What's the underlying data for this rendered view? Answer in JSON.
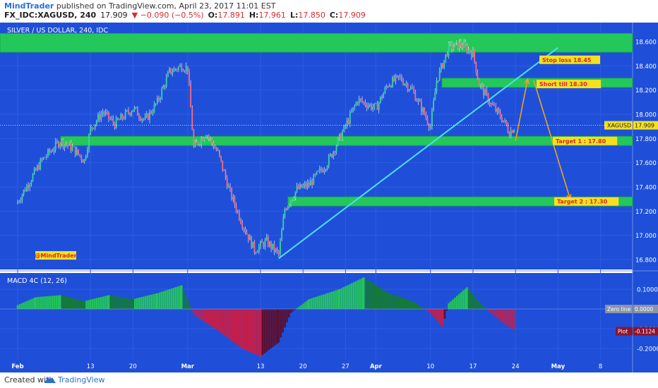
{
  "header": {
    "author": "MindTrader",
    "published": " published on TradingView.com, April 23, 2017 11:01 EST",
    "symbol": "FX_IDC:XAGUSD, 240",
    "last": "17.909",
    "change": "▼ −0.090 (−0.5%)",
    "o_label": "O:",
    "o_value": "17.891",
    "h_label": "H:",
    "h_value": "17.961",
    "l_label": "L:",
    "l_value": "17.850",
    "c_label": "C:",
    "c_value": "17.909"
  },
  "footer": {
    "created": "Created with",
    "brand": "TradingView"
  },
  "colors": {
    "background": "#1f4fd8",
    "zone": "#24c85a",
    "candle_up": "#38d6a0",
    "candle_down": "#ff6a7a",
    "trendline": "#4fe0f0",
    "arrow": "#f2a020",
    "label_bg": "#f5e020",
    "label_text": "#d22a2a",
    "macd_pos": "#1db34f",
    "macd_neg": "#a01a45"
  },
  "chart_data": [
    {
      "type": "candlestick",
      "title": "SILVER / US DOLLAR, 240, IDC",
      "ylim": [
        16.7,
        18.7
      ],
      "y_ticks": [
        "18.600",
        "18.400",
        "18.200",
        "18.000",
        "17.800",
        "17.600",
        "17.400",
        "17.200",
        "17.000",
        "16.800"
      ],
      "x_ticks": [
        "Feb",
        "13",
        "20",
        "Mar",
        "13",
        "20",
        "27",
        "Apr",
        "10",
        "17",
        "24",
        "May",
        "8"
      ],
      "last_price": {
        "label": "XAGUSD",
        "value": "17.909",
        "y": 17.909
      },
      "price_path": [
        {
          "x": "Feb 1",
          "y": 17.28
        },
        {
          "x": "Feb 3",
          "y": 17.45
        },
        {
          "x": "Feb 5",
          "y": 17.62
        },
        {
          "x": "Feb 8",
          "y": 17.78
        },
        {
          "x": "Feb 10",
          "y": 17.72
        },
        {
          "x": "Feb 12",
          "y": 17.62
        },
        {
          "x": "Feb 13",
          "y": 17.88
        },
        {
          "x": "Feb 15",
          "y": 18.02
        },
        {
          "x": "Feb 17",
          "y": 17.92
        },
        {
          "x": "Feb 20",
          "y": 18.05
        },
        {
          "x": "Feb 22",
          "y": 17.95
        },
        {
          "x": "Feb 24",
          "y": 18.1
        },
        {
          "x": "Feb 26",
          "y": 18.35
        },
        {
          "x": "Feb 28",
          "y": 18.4
        },
        {
          "x": "Mar 1",
          "y": 18.38
        },
        {
          "x": "Mar 2",
          "y": 17.72
        },
        {
          "x": "Mar 4",
          "y": 17.85
        },
        {
          "x": "Mar 6",
          "y": 17.68
        },
        {
          "x": "Mar 8",
          "y": 17.35
        },
        {
          "x": "Mar 10",
          "y": 17.1
        },
        {
          "x": "Mar 12",
          "y": 16.88
        },
        {
          "x": "Mar 14",
          "y": 16.95
        },
        {
          "x": "Mar 16",
          "y": 16.84
        },
        {
          "x": "Mar 17",
          "y": 17.22
        },
        {
          "x": "Mar 19",
          "y": 17.38
        },
        {
          "x": "Mar 21",
          "y": 17.42
        },
        {
          "x": "Mar 24",
          "y": 17.6
        },
        {
          "x": "Mar 27",
          "y": 17.9
        },
        {
          "x": "Mar 29",
          "y": 18.12
        },
        {
          "x": "Apr 1",
          "y": 18.05
        },
        {
          "x": "Apr 3",
          "y": 18.25
        },
        {
          "x": "Apr 5",
          "y": 18.3
        },
        {
          "x": "Apr 7",
          "y": 18.2
        },
        {
          "x": "Apr 10",
          "y": 17.9
        },
        {
          "x": "Apr 11",
          "y": 18.28
        },
        {
          "x": "Apr 13",
          "y": 18.55
        },
        {
          "x": "Apr 15",
          "y": 18.58
        },
        {
          "x": "Apr 17",
          "y": 18.5
        },
        {
          "x": "Apr 18",
          "y": 18.25
        },
        {
          "x": "Apr 20",
          "y": 18.08
        },
        {
          "x": "Apr 22",
          "y": 17.95
        },
        {
          "x": "Apr 23",
          "y": 17.85
        },
        {
          "x": "Apr 24",
          "y": 17.909
        }
      ],
      "zones": [
        {
          "from": 18.53,
          "to": 18.65
        },
        {
          "from": 18.24,
          "to": 18.28
        },
        {
          "from": 17.76,
          "to": 17.8
        },
        {
          "from": 17.26,
          "to": 17.3
        }
      ],
      "trendline": {
        "from": {
          "x": "Mar 16",
          "y": 16.81
        },
        "to": {
          "x": "May 1",
          "y": 18.55
        }
      },
      "arrows": [
        {
          "from": {
            "x": "Apr 24",
            "y": 17.78
          },
          "to": {
            "x": "Apr 26",
            "y": 18.29
          }
        },
        {
          "from": {
            "x": "Apr 27",
            "y": 18.28
          },
          "to": {
            "x": "May 3",
            "y": 17.3
          }
        }
      ],
      "annotations": [
        {
          "text": "Stop loss 18.45",
          "y": 18.45
        },
        {
          "text": "Short till 18.30",
          "y": 18.25
        },
        {
          "text": "Target 1 : 17.80",
          "y": 17.78
        },
        {
          "text": "Target 2 : 17.30",
          "y": 17.28
        }
      ],
      "watermark": "@MindTrader"
    },
    {
      "type": "bar",
      "title": "MACD 4C (12, 26)",
      "ylim": [
        -0.26,
        0.16
      ],
      "y_ticks": [
        "0.1000",
        "-0.1000",
        "-0.2000"
      ],
      "zero_line": {
        "label": "Zero line",
        "value": "0.0000"
      },
      "plot_value": {
        "label": "Plot",
        "value": "-0.1124",
        "y": -0.1124
      },
      "macd_path": [
        {
          "x": "Feb 1",
          "y": 0.02
        },
        {
          "x": "Feb 4",
          "y": 0.06
        },
        {
          "x": "Feb 8",
          "y": 0.07
        },
        {
          "x": "Feb 12",
          "y": 0.04
        },
        {
          "x": "Feb 16",
          "y": 0.07
        },
        {
          "x": "Feb 20",
          "y": 0.05
        },
        {
          "x": "Feb 24",
          "y": 0.08
        },
        {
          "x": "Feb 28",
          "y": 0.12
        },
        {
          "x": "Mar 2",
          "y": -0.03
        },
        {
          "x": "Mar 6",
          "y": -0.11
        },
        {
          "x": "Mar 10",
          "y": -0.2
        },
        {
          "x": "Mar 13",
          "y": -0.24
        },
        {
          "x": "Mar 16",
          "y": -0.17
        },
        {
          "x": "Mar 18",
          "y": -0.02
        },
        {
          "x": "Mar 21",
          "y": 0.05
        },
        {
          "x": "Mar 26",
          "y": 0.1
        },
        {
          "x": "Mar 30",
          "y": 0.16
        },
        {
          "x": "Apr 3",
          "y": 0.08
        },
        {
          "x": "Apr 7",
          "y": 0.04
        },
        {
          "x": "Apr 10",
          "y": -0.02
        },
        {
          "x": "Apr 12",
          "y": -0.09
        },
        {
          "x": "Apr 13",
          "y": 0.03
        },
        {
          "x": "Apr 16",
          "y": 0.11
        },
        {
          "x": "Apr 18",
          "y": 0.04
        },
        {
          "x": "Apr 20",
          "y": -0.02
        },
        {
          "x": "Apr 22",
          "y": -0.07
        },
        {
          "x": "Apr 24",
          "y": -0.1124
        }
      ]
    }
  ]
}
